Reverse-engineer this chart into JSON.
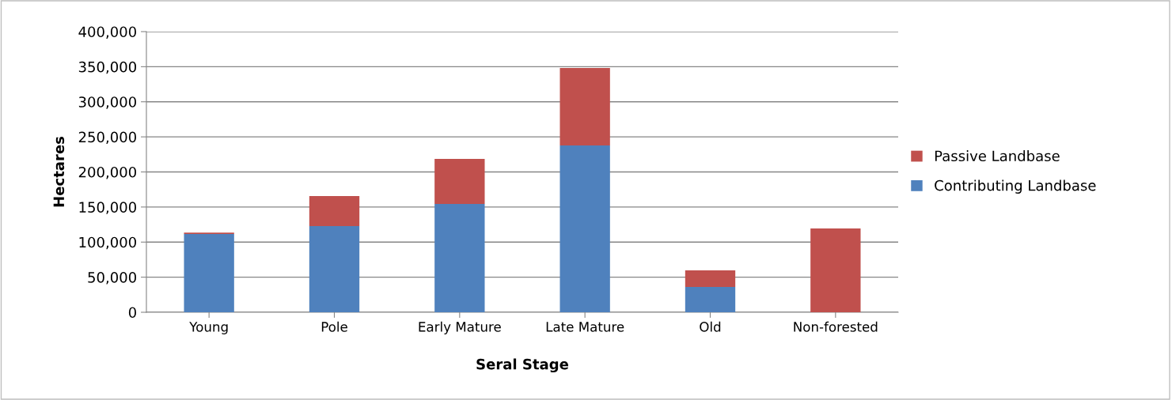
{
  "chart_data": {
    "type": "bar",
    "stacked": true,
    "xlabel": "Seral Stage",
    "ylabel": "Hectares",
    "categories": [
      "Young",
      "Pole",
      "Early Mature",
      "Late Mature",
      "Old",
      "Non-forested"
    ],
    "series": [
      {
        "name": "Contributing Landbase",
        "color": "#4f81bd",
        "values": [
          111500,
          122800,
          154400,
          237700,
          36000,
          0
        ]
      },
      {
        "name": "Passive Landbase",
        "color": "#c0504d",
        "values": [
          2000,
          42800,
          64200,
          110500,
          23700,
          119400
        ]
      }
    ],
    "ylim": [
      0,
      400000
    ],
    "yticks": [
      {
        "value": 0,
        "label": "0"
      },
      {
        "value": 50000,
        "label": "50,000"
      },
      {
        "value": 100000,
        "label": "100,000"
      },
      {
        "value": 150000,
        "label": "150,000"
      },
      {
        "value": 200000,
        "label": "200,000"
      },
      {
        "value": 250000,
        "label": "250,000"
      },
      {
        "value": 300000,
        "label": "300,000"
      },
      {
        "value": 350000,
        "label": "350,000"
      },
      {
        "value": 400000,
        "label": "400,000"
      }
    ],
    "grid": "y",
    "legend": "right"
  }
}
